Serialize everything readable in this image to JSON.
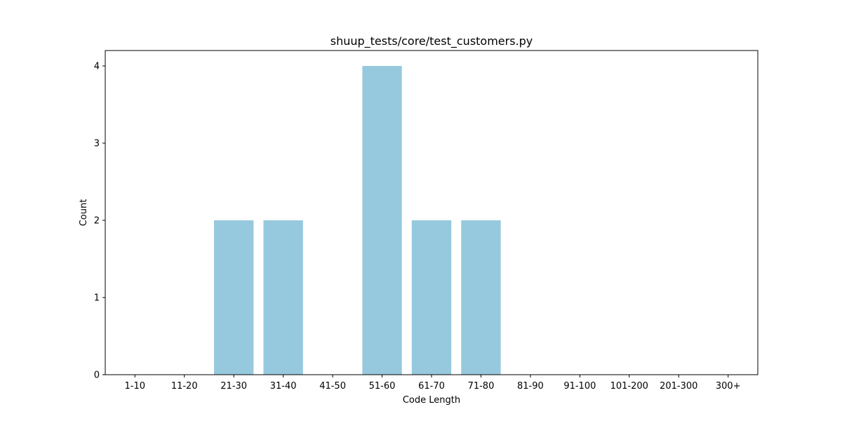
{
  "chart_data": {
    "type": "bar",
    "title": "shuup_tests/core/test_customers.py",
    "xlabel": "Code Length",
    "ylabel": "Count",
    "categories": [
      "1-10",
      "11-20",
      "21-30",
      "31-40",
      "41-50",
      "51-60",
      "61-70",
      "71-80",
      "81-90",
      "91-100",
      "101-200",
      "201-300",
      "300+"
    ],
    "values": [
      0,
      0,
      2,
      2,
      0,
      4,
      2,
      2,
      0,
      0,
      0,
      0,
      0
    ],
    "ylim": [
      0,
      4.2
    ],
    "yticks": [
      0,
      1,
      2,
      3,
      4
    ],
    "grid": false,
    "legend": "none",
    "bar_color": "#96c9dd"
  }
}
